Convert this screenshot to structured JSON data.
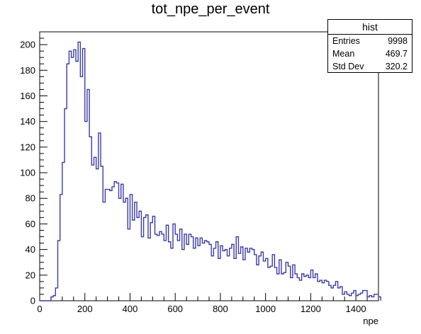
{
  "chart_data": {
    "type": "bar",
    "title": "tot_npe_per_event",
    "xlabel": "npe",
    "ylabel": "",
    "xlim": [
      0,
      1500
    ],
    "ylim": [
      0,
      210
    ],
    "bin_width": 10,
    "x_ticks": [
      0,
      200,
      400,
      600,
      800,
      1000,
      1200,
      1400
    ],
    "y_ticks": [
      0,
      20,
      40,
      60,
      80,
      100,
      120,
      140,
      160,
      180,
      200
    ],
    "colors": {
      "line": "#3b3ba6",
      "axes": "#000000",
      "background": "#ffffff"
    },
    "grid": false,
    "bins_start": 0,
    "values": [
      0,
      0,
      0,
      0,
      0,
      3,
      4,
      10,
      47,
      83,
      108,
      150,
      185,
      195,
      190,
      196,
      187,
      202,
      175,
      197,
      140,
      165,
      128,
      106,
      112,
      103,
      131,
      105,
      77,
      87,
      87,
      86,
      89,
      93,
      92,
      80,
      91,
      77,
      80,
      56,
      83,
      63,
      77,
      65,
      70,
      50,
      65,
      67,
      49,
      61,
      66,
      52,
      51,
      54,
      52,
      47,
      59,
      46,
      41,
      60,
      52,
      47,
      56,
      40,
      52,
      44,
      52,
      50,
      41,
      49,
      43,
      49,
      45,
      47,
      46,
      44,
      35,
      41,
      46,
      33,
      43,
      39,
      40,
      35,
      41,
      44,
      33,
      50,
      37,
      42,
      32,
      41,
      38,
      41,
      40,
      36,
      28,
      35,
      38,
      31,
      33,
      26,
      27,
      36,
      26,
      21,
      32,
      21,
      22,
      30,
      27,
      18,
      28,
      21,
      18,
      16,
      21,
      19,
      20,
      18,
      24,
      18,
      21,
      15,
      16,
      14,
      16,
      15,
      12,
      10,
      12,
      15,
      10,
      11,
      5,
      7,
      5,
      4,
      6,
      8,
      4,
      5,
      6,
      8,
      8,
      3,
      4,
      3,
      5,
      5,
      3
    ],
    "stats": {
      "name": "hist",
      "entries_label": "Entries",
      "entries": "9998",
      "mean_label": "Mean",
      "mean": "469.7",
      "std_label": "Std Dev",
      "std": "320.2"
    }
  }
}
